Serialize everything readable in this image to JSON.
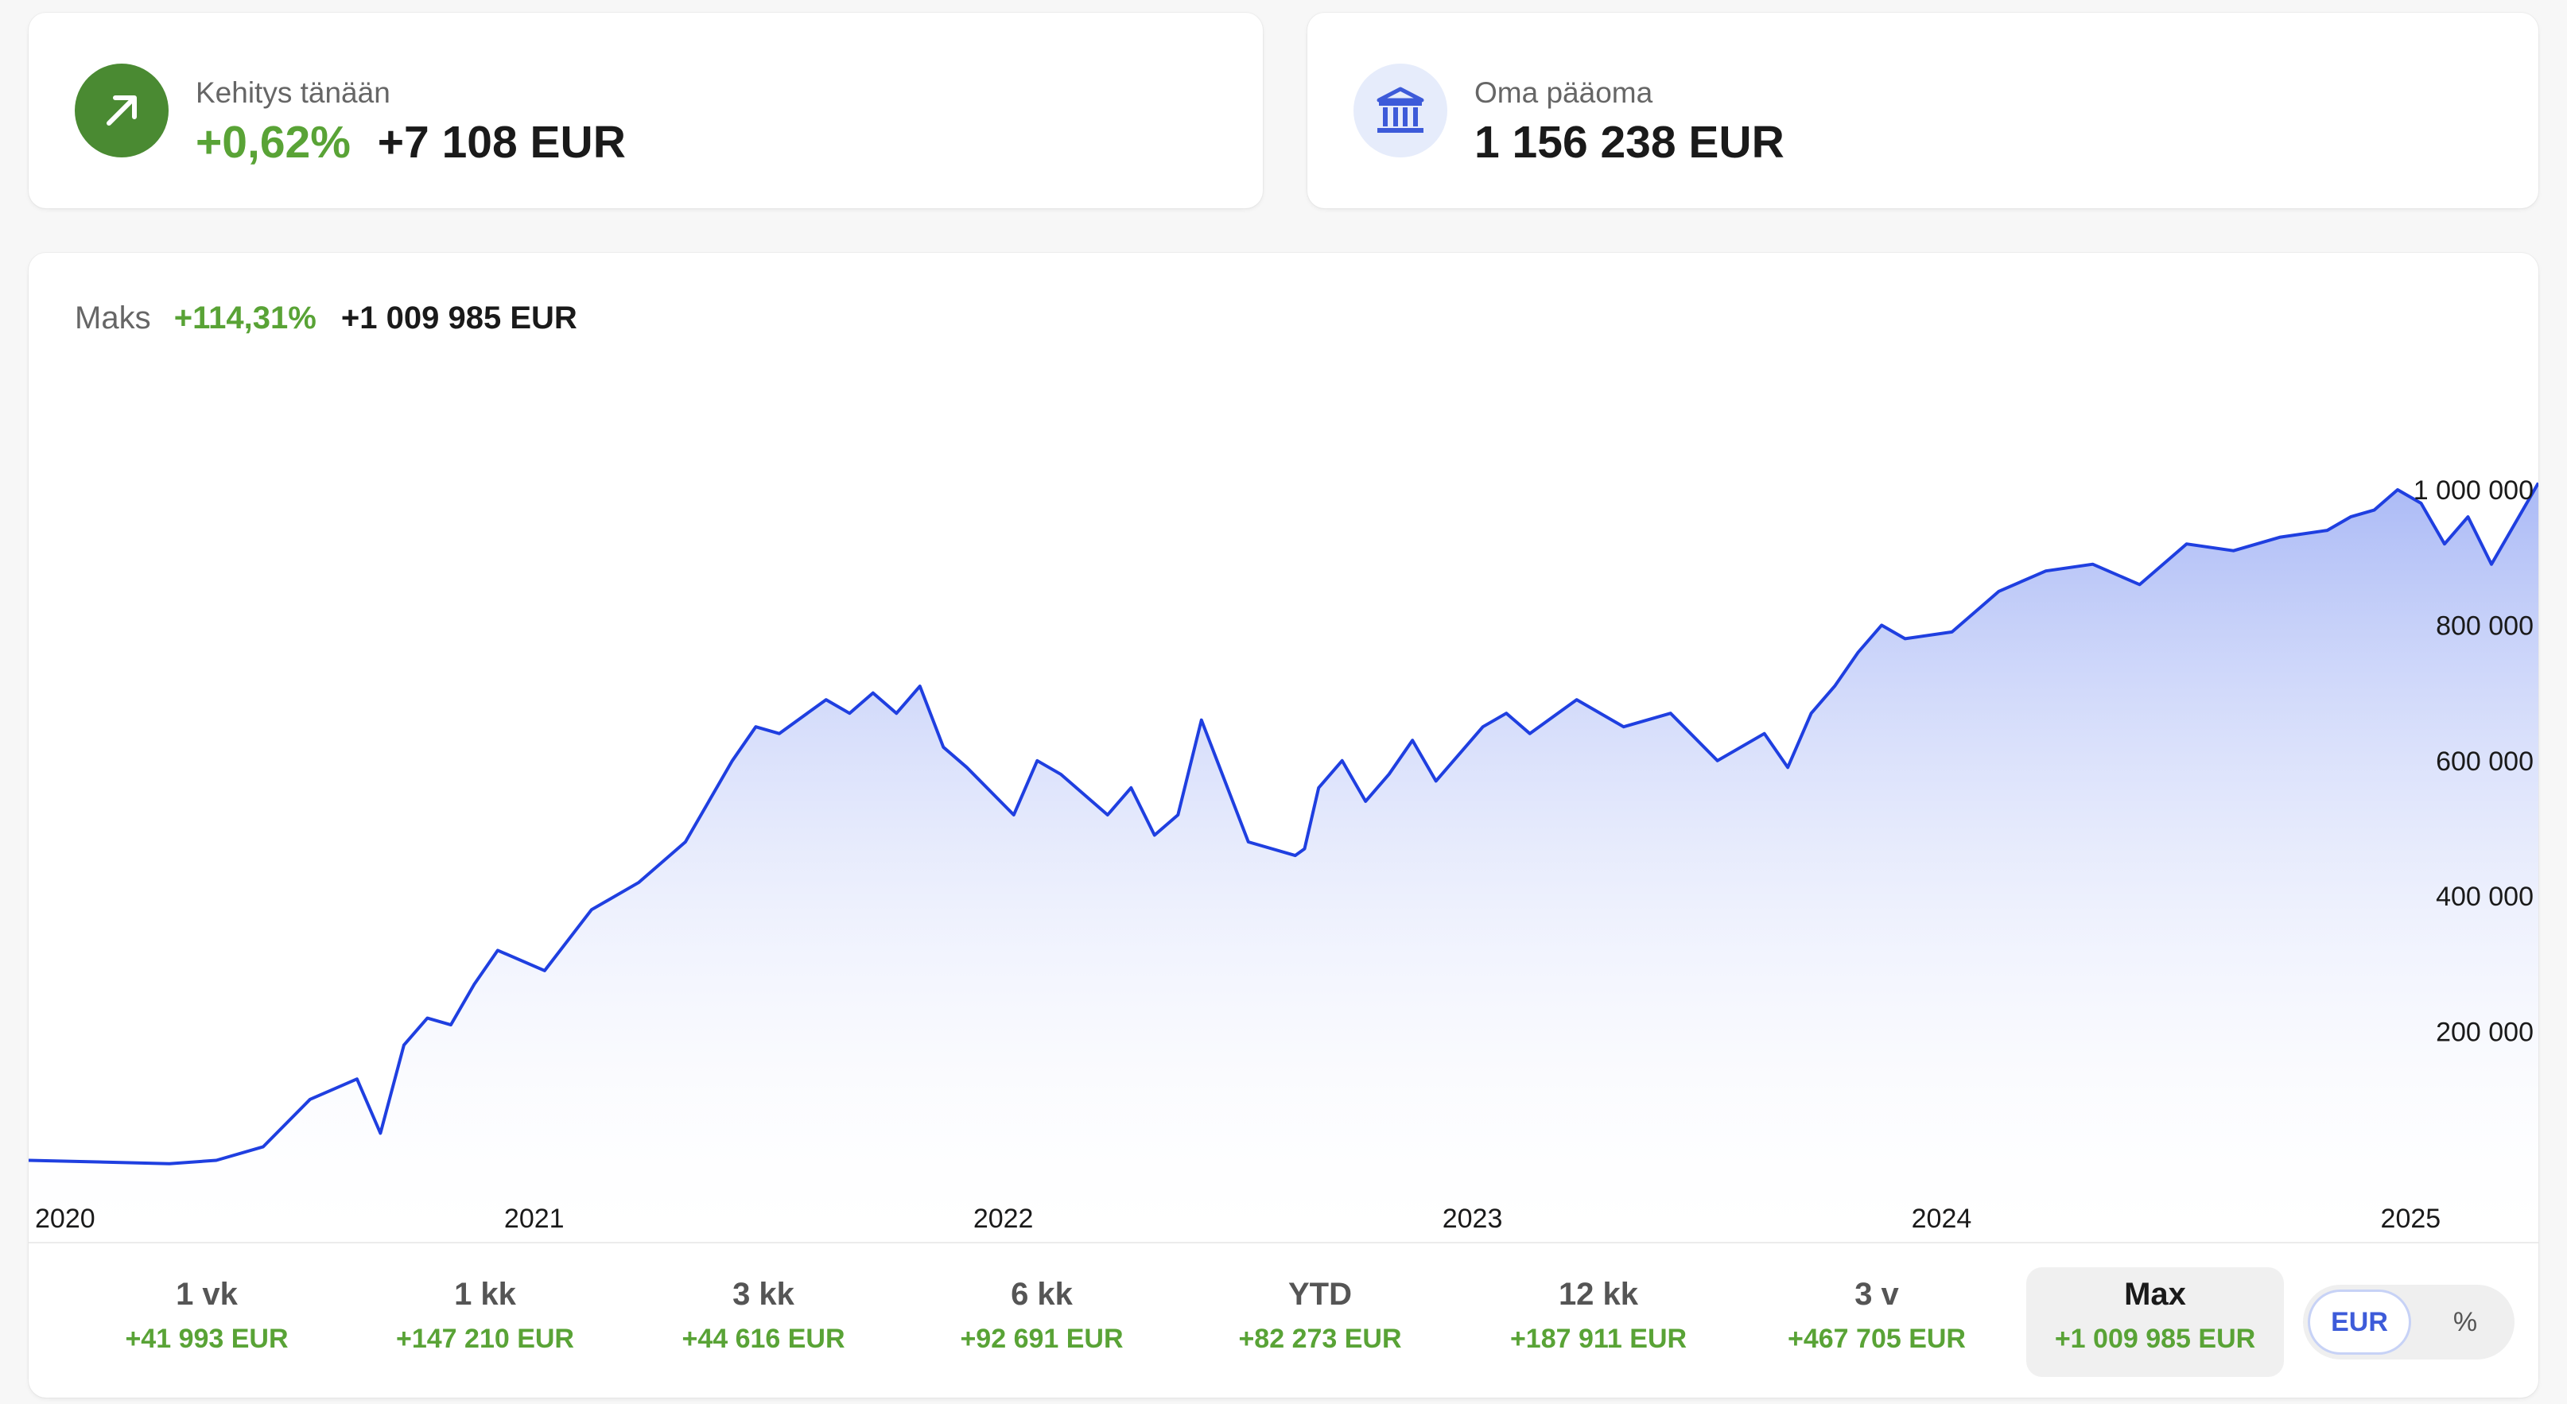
{
  "today": {
    "label": "Kehitys tänään",
    "change_pct": "+0,62%",
    "change_amount": "+7 108 EUR",
    "icon": "trend-up-arrow-icon"
  },
  "equity": {
    "label": "Oma pääoma",
    "value": "1 156 238 EUR",
    "icon": "bank-icon"
  },
  "chart_header": {
    "label": "Maks",
    "change_pct": "+114,31%",
    "change_amount": "+1 009 985 EUR"
  },
  "chart_data": {
    "type": "area",
    "x_ticks": [
      "2020",
      "2021",
      "2022",
      "2023",
      "2024",
      "2025"
    ],
    "y_ticks": [
      "1 000 000",
      "800 000",
      "600 000",
      "400 000",
      "200 000"
    ],
    "ylim": [
      0,
      1000000
    ],
    "color": "#1f3fe0",
    "x": [
      2020.0,
      2020.3,
      2020.4,
      2020.5,
      2020.6,
      2020.7,
      2020.75,
      2020.8,
      2020.85,
      2020.9,
      2020.95,
      2021.0,
      2021.1,
      2021.2,
      2021.3,
      2021.4,
      2021.5,
      2021.55,
      2021.6,
      2021.7,
      2021.75,
      2021.8,
      2021.85,
      2021.9,
      2021.95,
      2022.0,
      2022.1,
      2022.15,
      2022.2,
      2022.3,
      2022.35,
      2022.4,
      2022.45,
      2022.5,
      2022.6,
      2022.7,
      2022.72,
      2022.75,
      2022.8,
      2022.85,
      2022.9,
      2022.95,
      2023.0,
      2023.1,
      2023.15,
      2023.2,
      2023.3,
      2023.4,
      2023.5,
      2023.6,
      2023.7,
      2023.75,
      2023.8,
      2023.85,
      2023.9,
      2023.95,
      2024.0,
      2024.1,
      2024.2,
      2024.3,
      2024.4,
      2024.5,
      2024.6,
      2024.7,
      2024.8,
      2024.9,
      2024.95,
      2025.0,
      2025.05,
      2025.1,
      2025.15,
      2025.2,
      2025.25,
      2025.35
    ],
    "values": [
      10000,
      5000,
      10000,
      30000,
      100000,
      130000,
      50000,
      180000,
      220000,
      210000,
      270000,
      320000,
      290000,
      380000,
      420000,
      480000,
      600000,
      650000,
      640000,
      690000,
      670000,
      700000,
      670000,
      710000,
      620000,
      590000,
      520000,
      600000,
      580000,
      520000,
      560000,
      490000,
      520000,
      660000,
      480000,
      460000,
      470000,
      560000,
      600000,
      540000,
      580000,
      630000,
      570000,
      650000,
      670000,
      640000,
      690000,
      650000,
      670000,
      600000,
      640000,
      590000,
      670000,
      710000,
      760000,
      800000,
      780000,
      790000,
      850000,
      880000,
      890000,
      860000,
      920000,
      910000,
      930000,
      940000,
      960000,
      970000,
      1000000,
      980000,
      920000,
      960000,
      890000,
      1010000
    ]
  },
  "periods": [
    {
      "label": "1 vk",
      "change": "+41 993 EUR"
    },
    {
      "label": "1 kk",
      "change": "+147 210 EUR"
    },
    {
      "label": "3 kk",
      "change": "+44 616 EUR"
    },
    {
      "label": "6 kk",
      "change": "+92 691 EUR"
    },
    {
      "label": "YTD",
      "change": "+82 273 EUR"
    },
    {
      "label": "12 kk",
      "change": "+187 911 EUR"
    },
    {
      "label": "3 v",
      "change": "+467 705 EUR"
    },
    {
      "label": "Max",
      "change": "+1 009 985 EUR",
      "selected": true
    }
  ],
  "unit_toggle": {
    "options": [
      "EUR",
      "%"
    ],
    "selected": "EUR"
  }
}
